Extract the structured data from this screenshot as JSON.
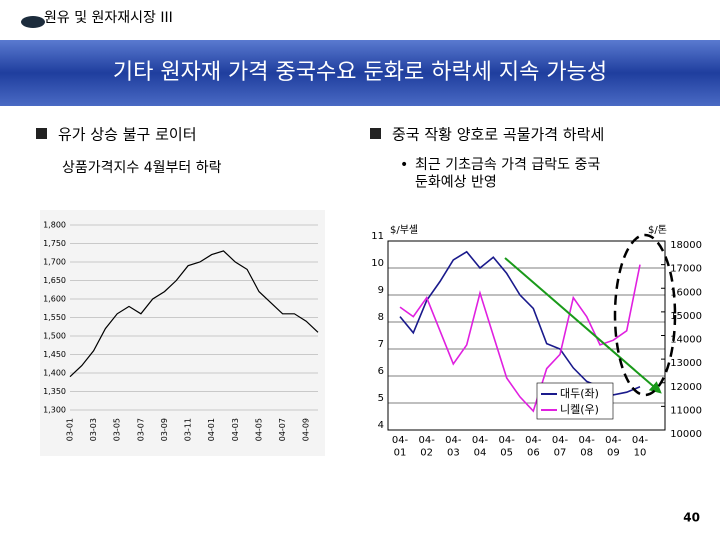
{
  "header": {
    "section": "원유 및 원자재시장 III",
    "title": "기타 원자재 가격 중국수요 둔화로 하락세 지속 가능성"
  },
  "left": {
    "bullet": "유가 상승 불구 로이터",
    "sub": "상품가격지수 4월부터 하락"
  },
  "right": {
    "bullet": "중국 작황 양호로 곡물가격 하락세",
    "sub": "최근 기초금속 가격 급락도 중국\n둔화예상 반영"
  },
  "page_number": "40",
  "chart_data": [
    {
      "type": "line",
      "categories": [
        "03-01",
        null,
        "03-03",
        null,
        "03-05",
        null,
        "03-07",
        null,
        "03-09",
        null,
        "03-11",
        null,
        "04-01",
        null,
        "04-03",
        null,
        "04-05",
        null,
        "04-07",
        null,
        "04-09",
        null
      ],
      "values": [
        1390,
        1420,
        1460,
        1520,
        1560,
        1580,
        1560,
        1600,
        1620,
        1650,
        1690,
        1700,
        1720,
        1730,
        1700,
        1680,
        1620,
        1590,
        1560,
        1560,
        1540,
        1510
      ],
      "color": "#000000",
      "ylim": [
        1300,
        1800
      ],
      "yticks": [
        {
          "value": 1300,
          "label": "1,300"
        },
        {
          "value": 1350,
          "label": "1,350"
        },
        {
          "value": 1400,
          "label": "1,400"
        },
        {
          "value": 1450,
          "label": "1,450"
        },
        {
          "value": 1500,
          "label": "1,500"
        },
        {
          "value": 1550,
          "label": "1,550"
        },
        {
          "value": 1600,
          "label": "1,600"
        },
        {
          "value": 1650,
          "label": "1,650"
        },
        {
          "value": 1700,
          "label": "1,700"
        },
        {
          "value": 1750,
          "label": "1,750"
        },
        {
          "value": 1800,
          "label": "1,800"
        }
      ],
      "grid": true
    },
    {
      "type": "line",
      "y_label": "$/부셸",
      "y2_label": "$/톤",
      "categories": [
        "04-\n01",
        null,
        "04-\n02",
        null,
        "04-\n03",
        null,
        "04-\n04",
        null,
        "04-\n05",
        null,
        "04-\n06",
        null,
        "04-\n07",
        null,
        "04-\n08",
        null,
        "04-\n09",
        null,
        "04-\n10"
      ],
      "series": [
        {
          "name": "대두(좌)",
          "color": "#1a1a8c",
          "values": [
            8.2,
            7.6,
            8.8,
            9.5,
            10.3,
            10.6,
            10.0,
            10.4,
            9.8,
            9.0,
            8.5,
            7.2,
            7.0,
            6.3,
            5.8,
            5.6,
            5.3,
            5.4,
            5.6
          ]
        },
        {
          "name": "니켈(우)",
          "color": "#e020e0",
          "axis": "y2",
          "values": [
            15200,
            14800,
            15600,
            14200,
            12800,
            13600,
            15800,
            14000,
            12200,
            11400,
            10800,
            12600,
            13200,
            15600,
            14800,
            13600,
            13800,
            14200,
            17000
          ]
        }
      ],
      "ylim": [
        4,
        11
      ],
      "yticks": [
        4,
        5,
        6,
        7,
        8,
        9,
        10,
        11
      ],
      "y2lim": [
        10000,
        18000
      ],
      "y2ticks": [
        10000,
        11000,
        12000,
        13000,
        14000,
        15000,
        16000,
        17000,
        18000
      ],
      "grid": true,
      "legend": "bottom"
    }
  ]
}
